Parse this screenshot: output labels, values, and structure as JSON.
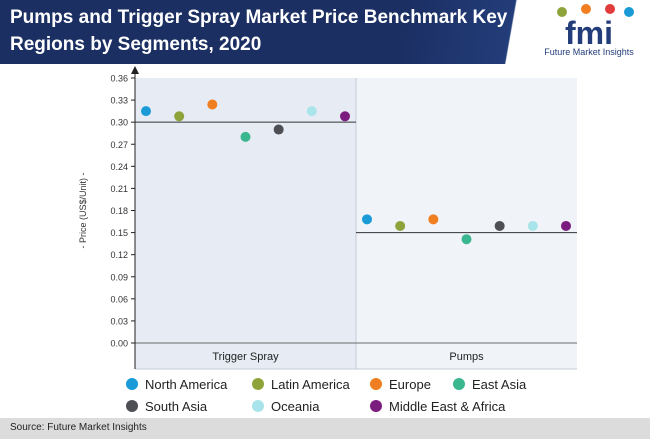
{
  "header": {
    "title": "Pumps and Trigger Spray Market Price Benchmark Key Regions by Segments, 2020"
  },
  "logo": {
    "mark": "fmi",
    "subtitle": "Future Market Insights"
  },
  "footer": {
    "source": "Source: Future Market Insights"
  },
  "chart_data": {
    "type": "scatter",
    "ylabel": "- Price (US$/Unit) -",
    "ylim": [
      0,
      0.36
    ],
    "yticks": [
      "0.00",
      "0.03",
      "0.06",
      "0.09",
      "0.12",
      "0.15",
      "0.18",
      "0.21",
      "0.24",
      "0.27",
      "0.30",
      "0.33",
      "0.36"
    ],
    "categories": [
      "Trigger Spray",
      "Pumps"
    ],
    "benchmark": [
      0.3,
      0.15
    ],
    "series": [
      {
        "name": "North America",
        "color": "#1a9ad6",
        "values": [
          0.315,
          0.168
        ]
      },
      {
        "name": "Latin America",
        "color": "#8fa33b",
        "values": [
          0.308,
          0.159
        ]
      },
      {
        "name": "Europe",
        "color": "#f07f22",
        "values": [
          0.324,
          0.168
        ]
      },
      {
        "name": "East Asia",
        "color": "#3bb78f",
        "values": [
          0.28,
          0.141
        ]
      },
      {
        "name": "South Asia",
        "color": "#4d4f55",
        "values": [
          0.29,
          0.159
        ]
      },
      {
        "name": "Oceania",
        "color": "#a9e4ea",
        "values": [
          0.315,
          0.159
        ]
      },
      {
        "name": "Middle East & Africa",
        "color": "#7b1d7e",
        "values": [
          0.308,
          0.159
        ]
      }
    ],
    "legend": "bottom"
  }
}
